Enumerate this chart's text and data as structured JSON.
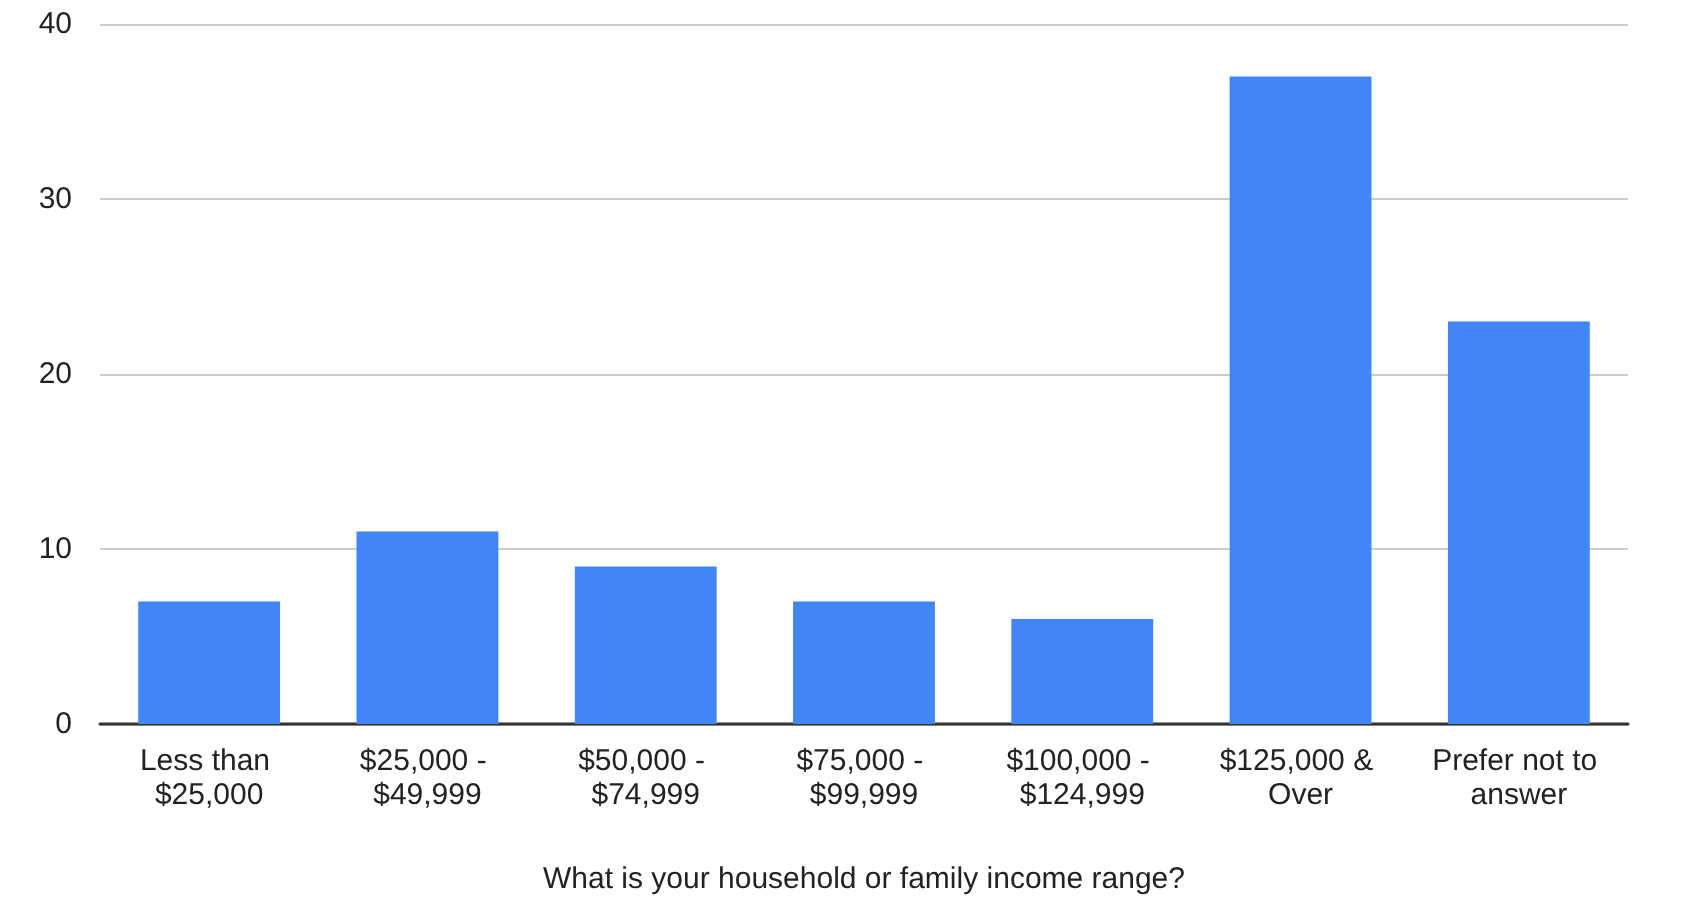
{
  "chart_data": {
    "type": "bar",
    "xlabel": "What is your household or family income range?",
    "categories": [
      "Less than $25,000",
      "$25,000 - $49,999",
      "$50,000 - $74,999",
      "$75,000 - $99,999",
      "$100,000 - $124,999",
      "$125,000 & Over",
      "Prefer not to answer"
    ],
    "values": [
      7,
      11,
      9,
      7,
      6,
      37,
      23
    ],
    "color": "#4285f4",
    "ylim": [
      0,
      40
    ],
    "yticks": [
      0,
      10,
      20,
      30,
      40
    ],
    "grid": "y"
  }
}
